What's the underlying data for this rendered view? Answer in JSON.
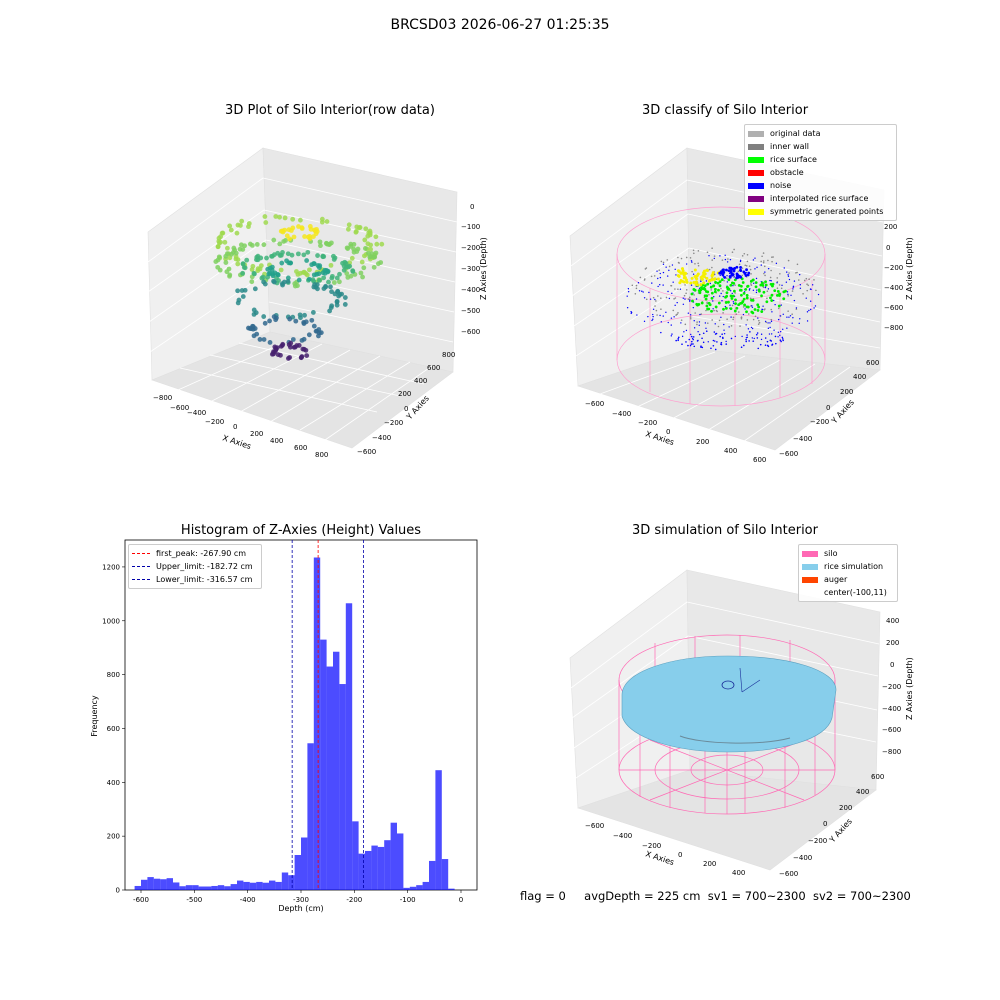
{
  "figure": {
    "suptitle": "BRCSD03 2026-06-27 01:25:35",
    "footer": {
      "flag": "flag = 0",
      "avg_depth": "avgDepth = 225 cm",
      "sv1": "sv1 = 700~2300",
      "sv2": "sv2 = 700~2300"
    }
  },
  "chart_data": [
    {
      "type": "scatter",
      "title": "3D Plot of Silo Interior(row data)",
      "xlabel": "X Axies",
      "ylabel": "Y Axies",
      "zlabel": "Z Axies (Depth)",
      "x_ticks": [
        "−800",
        "−600",
        "−400",
        "−200",
        "0",
        "200",
        "400",
        "600",
        "800"
      ],
      "y_ticks": [
        "−600",
        "−400",
        "−200",
        "0",
        "200",
        "400",
        "600",
        "800"
      ],
      "z_ticks": [
        "0",
        "−100",
        "−200",
        "−300",
        "−400",
        "−500",
        "−600"
      ],
      "colormap": "viridis",
      "description_points": "point cloud of silo interior colored by depth"
    },
    {
      "type": "scatter",
      "title": "3D classify of Silo Interior",
      "xlabel": "X Axies",
      "ylabel": "Y Axies",
      "zlabel": "Z Axies (Depth)",
      "x_ticks": [
        "−600",
        "−400",
        "−200",
        "0",
        "200",
        "400",
        "600"
      ],
      "y_ticks": [
        "−600",
        "−400",
        "−200",
        "0",
        "200",
        "400",
        "600"
      ],
      "z_ticks": [
        "200",
        "0",
        "−200",
        "−400",
        "−600",
        "−800"
      ],
      "legend": [
        {
          "label": "original data",
          "color": "#b0b0b0"
        },
        {
          "label": "inner wall",
          "color": "#808080"
        },
        {
          "label": "rice surface",
          "color": "#00ff00"
        },
        {
          "label": "obstacle",
          "color": "#ff0000"
        },
        {
          "label": "noise",
          "color": "#0000ff"
        },
        {
          "label": "interpolated rice surface",
          "color": "#800080"
        },
        {
          "label": "symmetric generated points",
          "color": "#ffff00"
        }
      ]
    },
    {
      "type": "bar",
      "title": "Histogram of Z-Axies (Height) Values",
      "xlabel": "Depth (cm)",
      "ylabel": "Frequency",
      "xlim": [
        -630,
        30
      ],
      "ylim": [
        0,
        1300
      ],
      "x_ticks": [
        -600,
        -500,
        -400,
        -300,
        -200,
        -100,
        0
      ],
      "y_ticks": [
        0,
        200,
        400,
        600,
        800,
        1000,
        1200
      ],
      "bar_color": "#0000ff",
      "bin_width": 12,
      "bin_start": -612,
      "values": [
        15,
        38,
        48,
        42,
        40,
        44,
        28,
        14,
        18,
        18,
        13,
        13,
        15,
        18,
        14,
        22,
        35,
        30,
        27,
        30,
        27,
        35,
        30,
        65,
        55,
        130,
        195,
        545,
        1235,
        930,
        830,
        885,
        765,
        1065,
        255,
        135,
        145,
        165,
        160,
        185,
        250,
        210,
        8,
        12,
        18,
        30,
        108,
        445,
        115,
        5
      ],
      "vlines": [
        {
          "x": -267.9,
          "color": "#ff0000",
          "label": "first_peak: -267.90 cm"
        },
        {
          "x": -182.72,
          "color": "#0000aa",
          "label": "Upper_limit: -182.72 cm"
        },
        {
          "x": -316.57,
          "color": "#0000aa",
          "label": "Lower_limit: -316.57 cm"
        }
      ],
      "legend_position": "top-left"
    },
    {
      "type": "area",
      "title": "3D simulation of Silo Interior",
      "xlabel": "X Axies",
      "ylabel": "Y Axies",
      "zlabel": "Z Axies (Depth)",
      "x_ticks": [
        "−600",
        "−400",
        "−200",
        "0",
        "200",
        "400"
      ],
      "y_ticks": [
        "−600",
        "−400",
        "−200",
        "0",
        "200",
        "400",
        "600"
      ],
      "z_ticks": [
        "400",
        "200",
        "0",
        "−200",
        "−400",
        "−600",
        "−800"
      ],
      "legend": [
        {
          "label": "silo",
          "color": "#ff69b4"
        },
        {
          "label": "rice simulation",
          "color": "#87ceeb"
        },
        {
          "label": "auger",
          "color": "#ff4500"
        },
        {
          "label": "center(-100,11)",
          "color": ""
        }
      ]
    }
  ]
}
